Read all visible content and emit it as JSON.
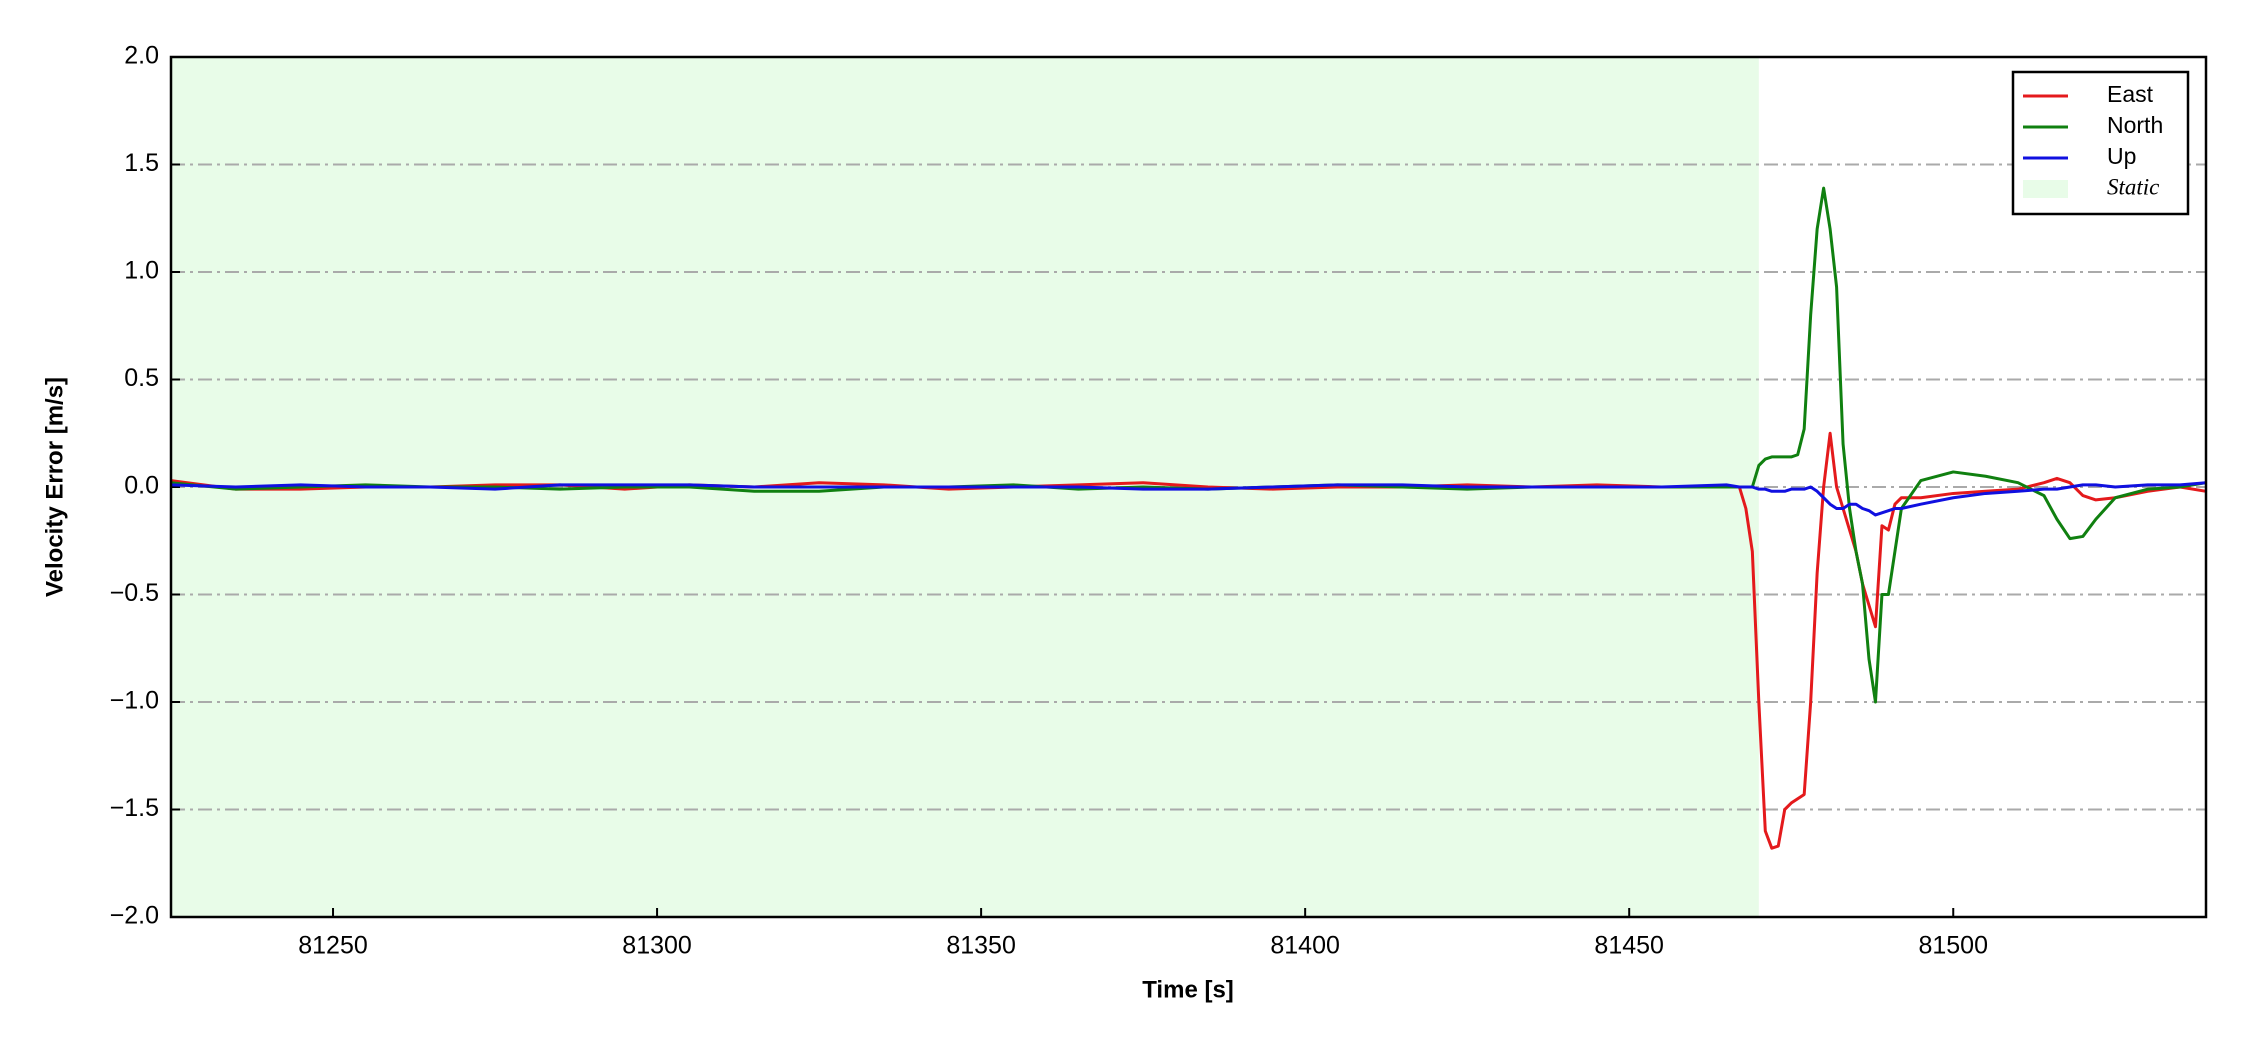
{
  "chart_data": {
    "type": "line",
    "xlabel": "Time [s]",
    "ylabel": "Velocity Error [m/s]",
    "xlim": [
      81225,
      81539
    ],
    "ylim": [
      -2,
      2
    ],
    "xticks": [
      81250,
      81300,
      81350,
      81400,
      81450,
      81500
    ],
    "yticks": [
      {
        "value": -2,
        "label": "−2.0"
      },
      {
        "value": -1.5,
        "label": "−1.5"
      },
      {
        "value": -1,
        "label": "−1.0"
      },
      {
        "value": -0.5,
        "label": "−0.5"
      },
      {
        "value": 0,
        "label": "0.0"
      },
      0.5,
      {
        "value": 1,
        "label": "1.0"
      },
      1.5,
      {
        "value": 2,
        "label": "2.0"
      }
    ],
    "grid": true,
    "legend": "upper right",
    "spans": [
      {
        "name": "Static",
        "x0": 81225,
        "x1": 81470,
        "color": "#e8fce8"
      }
    ],
    "x": [
      81225,
      81235,
      81245,
      81255,
      81265,
      81275,
      81285,
      81295,
      81305,
      81315,
      81325,
      81335,
      81345,
      81355,
      81365,
      81375,
      81385,
      81395,
      81405,
      81415,
      81425,
      81435,
      81445,
      81455,
      81465,
      81467,
      81468,
      81469,
      81470,
      81471,
      81472,
      81473,
      81474,
      81475,
      81476,
      81477,
      81478,
      81479,
      81480,
      81481,
      81482,
      81483,
      81484,
      81485,
      81486,
      81487,
      81488,
      81489,
      81490,
      81491,
      81492,
      81495,
      81500,
      81505,
      81510,
      81514,
      81516,
      81518,
      81520,
      81522,
      81525,
      81530,
      81535,
      81539
    ],
    "series": [
      {
        "name": "East",
        "color": "#e41a1c",
        "values": [
          0.03,
          -0.01,
          -0.01,
          0.0,
          0.0,
          0.01,
          0.01,
          -0.01,
          0.01,
          0.0,
          0.02,
          0.01,
          -0.01,
          0.0,
          0.01,
          0.02,
          0.0,
          -0.01,
          0.0,
          0.0,
          0.01,
          0.0,
          0.01,
          0.0,
          0.0,
          0,
          -0.1,
          -0.3,
          -1.0,
          -1.6,
          -1.68,
          -1.67,
          -1.5,
          -1.47,
          -1.45,
          -1.43,
          -1.0,
          -0.4,
          0.0,
          0.25,
          0.0,
          -0.1,
          -0.2,
          -0.3,
          -0.45,
          -0.55,
          -0.65,
          -0.18,
          -0.2,
          -0.08,
          -0.05,
          -0.05,
          -0.03,
          -0.02,
          -0.01,
          0.02,
          0.04,
          0.02,
          -0.04,
          -0.06,
          -0.05,
          -0.02,
          0.0,
          -0.02
        ]
      },
      {
        "name": "North",
        "color": "#108010",
        "values": [
          0.02,
          -0.01,
          0.0,
          0.01,
          0.0,
          0.0,
          -0.01,
          0.0,
          0.0,
          -0.02,
          -0.02,
          0.0,
          0.0,
          0.01,
          -0.01,
          0.0,
          -0.01,
          0.0,
          0.01,
          0.0,
          -0.01,
          0.0,
          0.0,
          0.0,
          0.0,
          0,
          0,
          0.0,
          0.1,
          0.13,
          0.14,
          0.14,
          0.14,
          0.14,
          0.15,
          0.27,
          0.8,
          1.2,
          1.39,
          1.2,
          0.93,
          0.2,
          -0.1,
          -0.3,
          -0.45,
          -0.8,
          -1.0,
          -0.5,
          -0.5,
          -0.3,
          -0.1,
          0.03,
          0.07,
          0.05,
          0.02,
          -0.04,
          -0.15,
          -0.24,
          -0.23,
          -0.15,
          -0.05,
          -0.01,
          0.0,
          0.02
        ]
      },
      {
        "name": "Up",
        "color": "#1010e0",
        "values": [
          0.01,
          0.0,
          0.01,
          0.0,
          0.0,
          -0.01,
          0.01,
          0.01,
          0.01,
          0.0,
          0.0,
          0.0,
          0.0,
          0.0,
          0.0,
          -0.01,
          -0.01,
          0.0,
          0.01,
          0.01,
          0.0,
          0.0,
          0.0,
          0.0,
          0.01,
          0,
          0,
          0,
          -0.01,
          -0.01,
          -0.02,
          -0.02,
          -0.02,
          -0.01,
          -0.01,
          -0.01,
          0,
          -0.02,
          -0.05,
          -0.08,
          -0.1,
          -0.1,
          -0.08,
          -0.08,
          -0.1,
          -0.11,
          -0.13,
          -0.12,
          -0.11,
          -0.1,
          -0.1,
          -0.08,
          -0.05,
          -0.03,
          -0.02,
          -0.01,
          -0.01,
          0.0,
          0.01,
          0.01,
          0.0,
          0.01,
          0.01,
          0.02
        ]
      }
    ]
  }
}
